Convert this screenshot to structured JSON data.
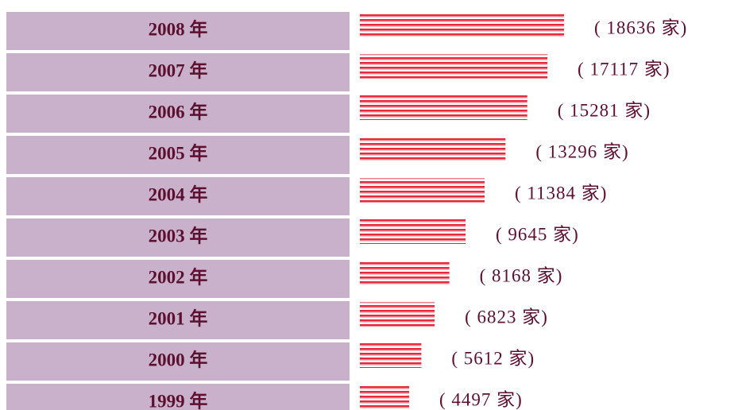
{
  "chart_data": {
    "type": "bar",
    "categories": [
      "2008 年",
      "2007 年",
      "2006 年",
      "2005 年",
      "2004 年",
      "2003 年",
      "2002 年",
      "2001 年",
      "2000 年",
      "1999 年"
    ],
    "values": [
      18636,
      17117,
      15281,
      13296,
      11384,
      9645,
      8168,
      6823,
      5612,
      4497
    ],
    "value_labels": [
      "( 18636 家)",
      "( 17117 家)",
      "( 15281 家)",
      "( 13296 家)",
      "( 11384 家)",
      "( 9645 家)",
      "( 8168 家)",
      "( 6823 家)",
      "( 5612 家)",
      "( 4497 家)"
    ],
    "color": "#e8283c"
  }
}
